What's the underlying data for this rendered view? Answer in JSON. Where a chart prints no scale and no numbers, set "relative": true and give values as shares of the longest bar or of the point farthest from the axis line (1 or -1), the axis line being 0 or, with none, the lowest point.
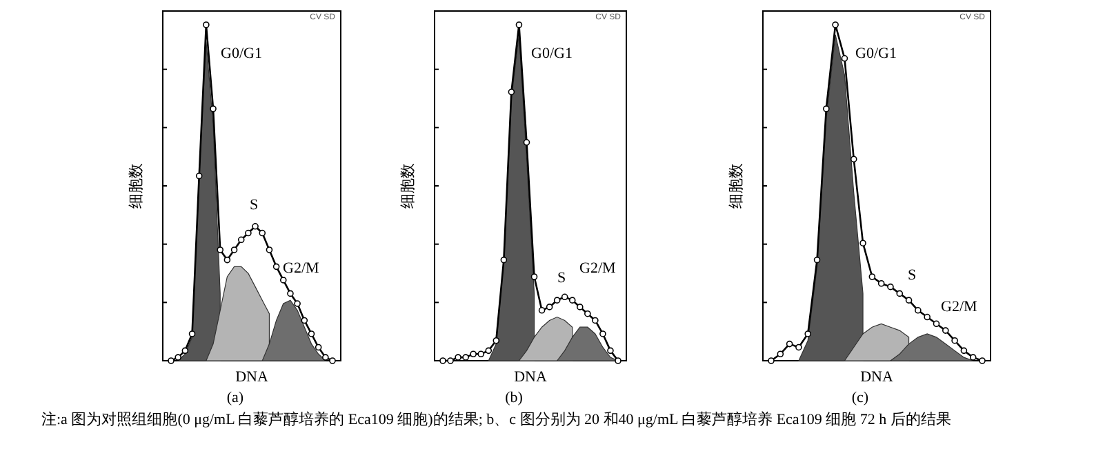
{
  "chart_data": [
    {
      "type": "line",
      "title": "(a)",
      "xlabel": "DNA",
      "ylabel": "细胞数",
      "relative": true,
      "categories": [
        null,
        null,
        null,
        null,
        null,
        null,
        null,
        null,
        null,
        null,
        null,
        null,
        null,
        null,
        null,
        null,
        null,
        null,
        null,
        null,
        null,
        null,
        null,
        null
      ],
      "annotations": [
        "CV SD",
        "G0/G1",
        "S",
        "G2/M",
        "注:a 图为对照组细胞(0 μg/mL 白藜芦醇培养的 Eca109 细胞)的结果; b、c 图分别为 20 和40 μg/mL 白藜芦醇培养 Eca109 细胞 72 h 后的结果"
      ],
      "series": [
        {
          "type": "area",
          "color": "#555555",
          "values": [
            null,
            0,
            0.02,
            0.07,
            0.55,
            0.95,
            0.7,
            0.2,
            null,
            null,
            null,
            null,
            null,
            null,
            null,
            null,
            null,
            null,
            null,
            null,
            null,
            null,
            null,
            null
          ]
        },
        {
          "type": "area",
          "color": "#b4b4b4",
          "values": [
            null,
            null,
            null,
            null,
            null,
            0,
            0.05,
            0.15,
            0.25,
            0.28,
            0.28,
            0.26,
            0.22,
            0.18,
            0.14,
            null,
            null,
            null,
            null,
            null,
            null,
            null,
            null,
            null
          ]
        },
        {
          "type": "area",
          "color": "#6e6e6e",
          "values": [
            null,
            null,
            null,
            null,
            null,
            null,
            null,
            null,
            null,
            null,
            null,
            null,
            null,
            0,
            0.05,
            0.12,
            0.17,
            0.18,
            0.15,
            0.1,
            0.05,
            0.02,
            0,
            null
          ]
        },
        {
          "type": "line",
          "marker": "circle",
          "color": "#000000",
          "values": [
            0,
            0.01,
            0.03,
            0.08,
            0.55,
            1.0,
            0.75,
            0.33,
            0.3,
            0.33,
            0.36,
            0.38,
            0.4,
            0.38,
            0.33,
            0.28,
            0.24,
            0.2,
            0.17,
            0.12,
            0.08,
            0.04,
            0.01,
            0
          ]
        }
      ]
    },
    {
      "type": "line",
      "title": "(b)",
      "xlabel": "DNA",
      "ylabel": "细胞数",
      "relative": true,
      "categories": [
        null,
        null,
        null,
        null,
        null,
        null,
        null,
        null,
        null,
        null,
        null,
        null,
        null,
        null,
        null,
        null,
        null,
        null,
        null,
        null,
        null,
        null,
        null,
        null
      ],
      "annotations": [
        "CV SD",
        "G0/G1",
        "S",
        "G2/M"
      ],
      "series": [
        {
          "type": "area",
          "color": "#555555",
          "values": [
            null,
            null,
            null,
            null,
            null,
            null,
            0,
            0.05,
            0.3,
            0.78,
            0.97,
            0.6,
            0.2,
            null,
            null,
            null,
            null,
            null,
            null,
            null,
            null,
            null,
            null,
            null
          ]
        },
        {
          "type": "area",
          "color": "#b4b4b4",
          "values": [
            null,
            null,
            null,
            null,
            null,
            null,
            null,
            null,
            null,
            null,
            0,
            0.03,
            0.07,
            0.1,
            0.12,
            0.13,
            0.12,
            0.1,
            null,
            null,
            null,
            null,
            null,
            null
          ]
        },
        {
          "type": "area",
          "color": "#6e6e6e",
          "values": [
            null,
            null,
            null,
            null,
            null,
            null,
            null,
            null,
            null,
            null,
            null,
            null,
            null,
            null,
            null,
            0,
            0.03,
            0.07,
            0.1,
            0.1,
            0.08,
            0.04,
            0.01,
            0
          ]
        },
        {
          "type": "line",
          "marker": "circle",
          "color": "#000000",
          "values": [
            0,
            0,
            0.01,
            0.01,
            0.02,
            0.02,
            0.03,
            0.06,
            0.3,
            0.8,
            1.0,
            0.65,
            0.25,
            0.15,
            0.16,
            0.18,
            0.19,
            0.18,
            0.16,
            0.14,
            0.12,
            0.08,
            0.03,
            0
          ]
        }
      ]
    },
    {
      "type": "line",
      "title": "(c)",
      "xlabel": "DNA",
      "ylabel": "细胞数",
      "relative": true,
      "categories": [
        null,
        null,
        null,
        null,
        null,
        null,
        null,
        null,
        null,
        null,
        null,
        null,
        null,
        null,
        null,
        null,
        null,
        null,
        null,
        null,
        null,
        null,
        null,
        null
      ],
      "annotations": [
        "CV SD",
        "G0/G1",
        "S",
        "G2/M"
      ],
      "series": [
        {
          "type": "area",
          "color": "#555555",
          "values": [
            null,
            null,
            null,
            0,
            0.06,
            0.28,
            0.72,
            0.97,
            0.85,
            0.5,
            0.2,
            null,
            null,
            null,
            null,
            null,
            null,
            null,
            null,
            null,
            null,
            null,
            null,
            null
          ]
        },
        {
          "type": "area",
          "color": "#b4b4b4",
          "values": [
            null,
            null,
            null,
            null,
            null,
            null,
            null,
            null,
            0,
            0.04,
            0.08,
            0.1,
            0.11,
            0.1,
            0.09,
            0.07,
            null,
            null,
            null,
            null,
            null,
            null,
            null,
            null
          ]
        },
        {
          "type": "area",
          "color": "#6e6e6e",
          "values": [
            null,
            null,
            null,
            null,
            null,
            null,
            null,
            null,
            null,
            null,
            null,
            null,
            null,
            0,
            0.02,
            0.05,
            0.07,
            0.08,
            0.07,
            0.05,
            0.03,
            0.01,
            0,
            null
          ]
        },
        {
          "type": "line",
          "marker": "circle",
          "color": "#000000",
          "values": [
            0,
            0.02,
            0.05,
            0.04,
            0.08,
            0.3,
            0.75,
            1.0,
            0.9,
            0.6,
            0.35,
            0.25,
            0.23,
            0.22,
            0.2,
            0.18,
            0.15,
            0.13,
            0.11,
            0.09,
            0.06,
            0.03,
            0.01,
            0
          ]
        }
      ]
    }
  ]
}
